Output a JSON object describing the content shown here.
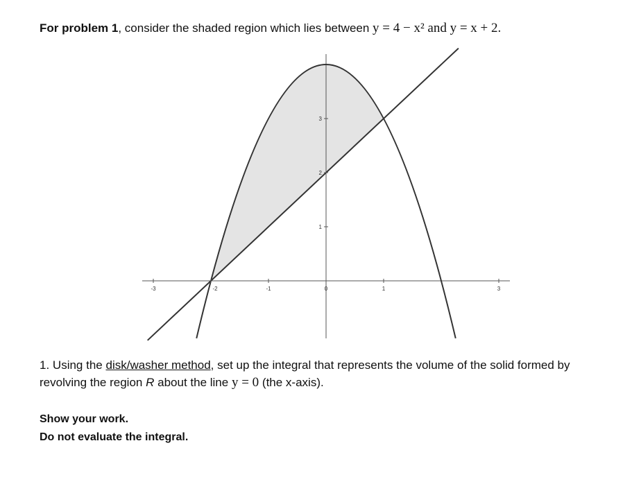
{
  "heading": {
    "lead": "For problem 1",
    "text": ", consider the shaded region which lies between",
    "curve_1": "y = 4 − x²",
    "joiner": "and",
    "curve_2": "y = x + 2."
  },
  "graph": {
    "x_ticks": [
      -3,
      -2,
      -1,
      0,
      1,
      3
    ],
    "y_ticks": [
      1,
      2,
      3
    ]
  },
  "question": {
    "number": "1.",
    "part_1": "Using the",
    "method": "disk/washer method",
    "part_2": ", set up the integral that represents the volume of the solid formed by revolving the region",
    "region": "R",
    "part_3": "about the line",
    "line": "y = 0",
    "part_4": "(the x-axis)."
  },
  "notes": [
    "Show your work.",
    "Do not evaluate the integral."
  ]
}
